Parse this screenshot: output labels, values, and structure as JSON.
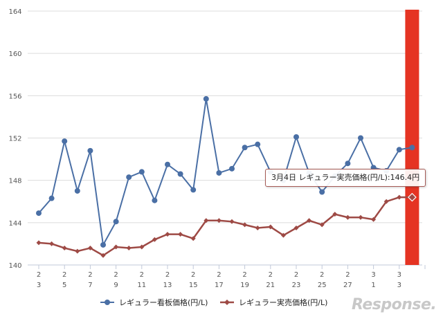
{
  "chart_data": {
    "type": "line",
    "title": "",
    "xlabel": "",
    "ylabel": "",
    "ylim": [
      140,
      164
    ],
    "yticks": [
      140,
      144,
      148,
      152,
      156,
      160,
      164
    ],
    "grid": true,
    "legend_position": "bottom",
    "categories": [
      "2/3",
      "2/4",
      "2/5",
      "2/6",
      "2/7",
      "2/8",
      "2/9",
      "2/10",
      "2/11",
      "2/12",
      "2/13",
      "2/14",
      "2/15",
      "2/16",
      "2/17",
      "2/18",
      "2/19",
      "2/20",
      "2/21",
      "2/22",
      "2/23",
      "2/24",
      "2/25",
      "2/26",
      "2/27",
      "2/28",
      "3/1",
      "3/2",
      "3/3",
      "3/4"
    ],
    "xtick_labels": [
      {
        "index": 0,
        "month": "2",
        "day": "3"
      },
      {
        "index": 2,
        "month": "2",
        "day": "5"
      },
      {
        "index": 4,
        "month": "2",
        "day": "7"
      },
      {
        "index": 6,
        "month": "2",
        "day": "9"
      },
      {
        "index": 8,
        "month": "2",
        "day": "11"
      },
      {
        "index": 10,
        "month": "2",
        "day": "13"
      },
      {
        "index": 12,
        "month": "2",
        "day": "15"
      },
      {
        "index": 14,
        "month": "2",
        "day": "17"
      },
      {
        "index": 16,
        "month": "2",
        "day": "19"
      },
      {
        "index": 18,
        "month": "2",
        "day": "21"
      },
      {
        "index": 20,
        "month": "2",
        "day": "23"
      },
      {
        "index": 22,
        "month": "2",
        "day": "25"
      },
      {
        "index": 24,
        "month": "2",
        "day": "27"
      },
      {
        "index": 26,
        "month": "3",
        "day": "1"
      },
      {
        "index": 28,
        "month": "3",
        "day": "3"
      }
    ],
    "series": [
      {
        "name": "レギュラー看板価格(円/L)",
        "color": "#4a6fa5",
        "marker": "circle",
        "values": [
          144.9,
          146.3,
          151.7,
          147.0,
          150.8,
          141.9,
          144.1,
          148.3,
          148.8,
          146.1,
          149.5,
          148.6,
          147.1,
          155.7,
          148.7,
          149.1,
          151.1,
          151.4,
          148.8,
          148.0,
          152.1,
          148.7,
          146.9,
          148.4,
          149.6,
          152.0,
          149.2,
          148.9,
          150.9,
          151.1
        ]
      },
      {
        "name": "レギュラー実売価格(円/L)",
        "color": "#9e4a45",
        "marker": "diamond",
        "values": [
          142.1,
          142.0,
          141.6,
          141.3,
          141.6,
          140.9,
          141.7,
          141.6,
          141.7,
          142.4,
          142.9,
          142.9,
          142.5,
          144.2,
          144.2,
          144.1,
          143.8,
          143.5,
          143.6,
          142.8,
          143.5,
          144.2,
          143.8,
          144.8,
          144.5,
          144.5,
          144.3,
          146.0,
          146.4,
          146.4
        ]
      }
    ],
    "highlight": {
      "index": 29,
      "color": "#e53423"
    },
    "tooltip": "3月4日 レギュラー実売価格(円/L):146.4円"
  },
  "logo": "Response."
}
